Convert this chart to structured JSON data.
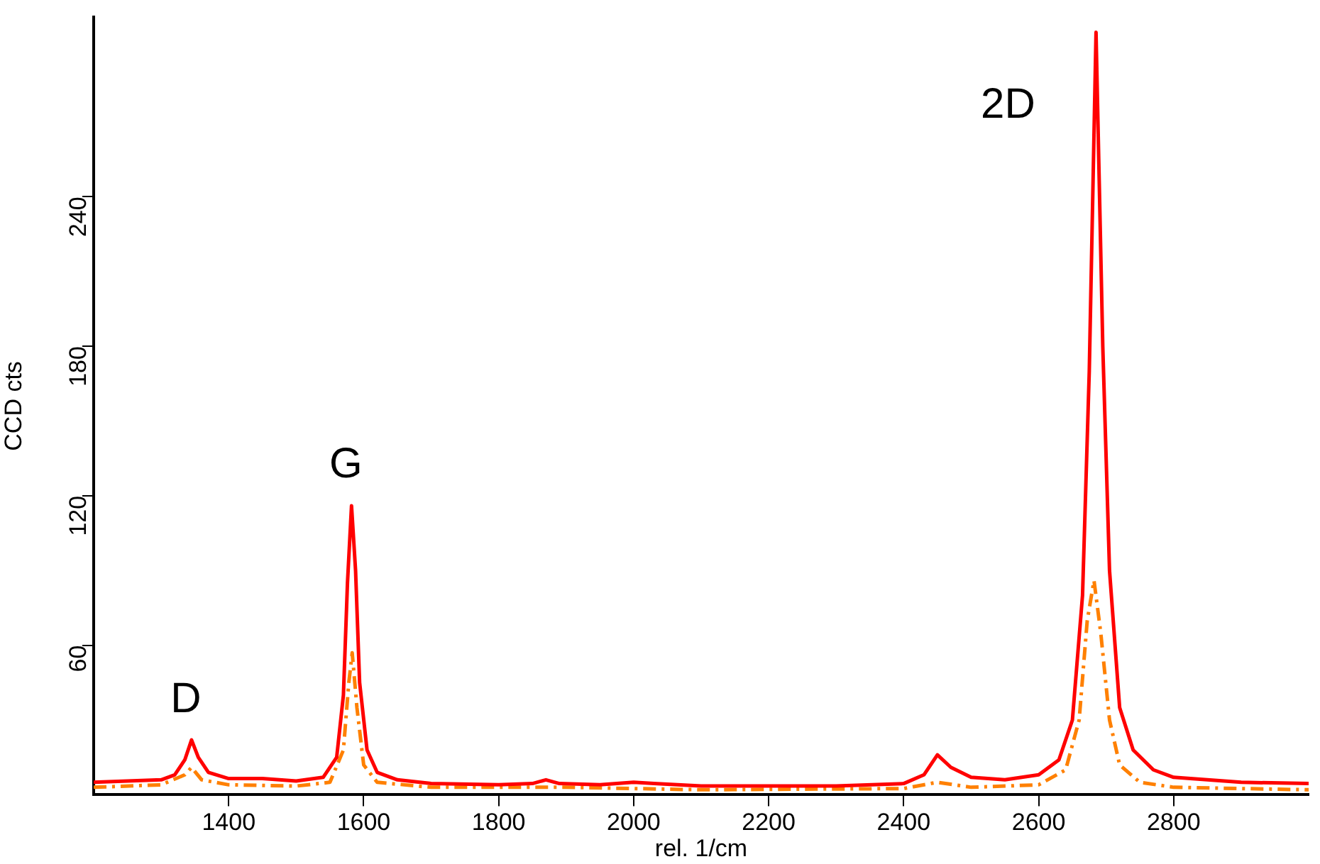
{
  "chart_data": {
    "type": "line",
    "xlabel": "rel. 1/cm",
    "ylabel": "CCD cts",
    "xlim": [
      1200,
      3000
    ],
    "xticks": [
      1400,
      1600,
      1800,
      2000,
      2200,
      2400,
      2600,
      2800
    ],
    "ylim": [
      0,
      312
    ],
    "yticks": [
      60,
      120,
      180,
      240
    ],
    "grid": false,
    "legend": false,
    "marker": "none",
    "series": [
      {
        "color": "#ff0000",
        "line_style": "solid",
        "x": [
          1200,
          1250,
          1300,
          1320,
          1335,
          1345,
          1355,
          1370,
          1400,
          1450,
          1500,
          1540,
          1560,
          1570,
          1576,
          1582,
          1588,
          1594,
          1605,
          1620,
          1650,
          1700,
          1800,
          1850,
          1870,
          1890,
          1950,
          2000,
          2030,
          2100,
          2200,
          2300,
          2400,
          2430,
          2450,
          2470,
          2500,
          2550,
          2600,
          2630,
          2650,
          2665,
          2675,
          2685,
          2695,
          2705,
          2720,
          2740,
          2770,
          2800,
          2900,
          3000
        ],
        "values": [
          5,
          5.5,
          6,
          8,
          14,
          22,
          15,
          9,
          6.5,
          6.5,
          5.5,
          7,
          15,
          40,
          85,
          116,
          90,
          45,
          18,
          9,
          6,
          4.5,
          4,
          4.5,
          6,
          4.5,
          4,
          5,
          4.5,
          3.5,
          3.5,
          3.5,
          4.5,
          8,
          16,
          11,
          7,
          6,
          8,
          14,
          30,
          80,
          170,
          306,
          180,
          90,
          35,
          18,
          10,
          7,
          5,
          4.5
        ]
      },
      {
        "color": "#ff8000",
        "line_style": "dashed",
        "x": [
          1200,
          1300,
          1335,
          1345,
          1360,
          1400,
          1500,
          1550,
          1570,
          1578,
          1583,
          1590,
          1600,
          1620,
          1700,
          1900,
          2100,
          2400,
          2450,
          2500,
          2600,
          2640,
          2660,
          2672,
          2682,
          2692,
          2705,
          2720,
          2750,
          2800,
          3000
        ],
        "values": [
          3,
          4,
          8,
          11,
          6,
          4,
          3.5,
          5,
          18,
          45,
          57,
          35,
          12,
          5,
          3,
          3,
          2,
          2.5,
          5,
          3,
          4,
          10,
          30,
          70,
          86,
          65,
          30,
          12,
          5,
          3,
          2
        ]
      }
    ],
    "annotations": [
      {
        "text": "D",
        "x": 1345,
        "y": 22
      },
      {
        "text": "G",
        "x": 1582,
        "y": 116
      },
      {
        "text": "2D",
        "x": 2685,
        "y": 306
      }
    ]
  }
}
